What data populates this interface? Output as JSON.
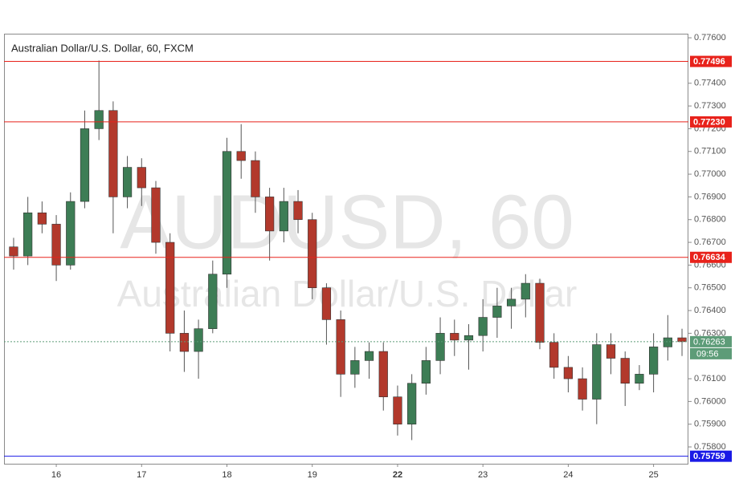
{
  "chart_data": {
    "type": "candlestick",
    "title": "Australian Dollar/U.S. Dollar, 60, FXCM",
    "watermark": "AUDUSD, 60",
    "watermark_subtitle": "Australian Dollar/U.S. Dollar",
    "up_color": "#3d7d55",
    "down_color": "#b2392c",
    "x": [
      -12,
      -8,
      -4,
      0,
      4,
      8,
      12,
      16,
      20,
      24,
      28,
      32,
      36,
      40,
      44,
      48,
      52,
      56,
      60,
      64,
      68,
      72,
      76,
      80,
      84,
      88,
      92,
      96,
      100,
      104,
      108,
      112,
      116,
      120,
      124,
      128,
      132,
      136,
      140,
      144,
      148,
      152,
      156,
      160,
      164,
      168,
      172,
      176
    ],
    "open": [
      0.7668,
      0.7664,
      0.7683,
      0.7678,
      0.766,
      0.7688,
      0.772,
      0.7728,
      0.769,
      0.7703,
      0.7694,
      0.767,
      0.763,
      0.7622,
      0.7632,
      0.7656,
      0.771,
      0.7706,
      0.769,
      0.7675,
      0.7688,
      0.768,
      0.765,
      0.7636,
      0.7612,
      0.7618,
      0.7622,
      0.7602,
      0.759,
      0.7608,
      0.7618,
      0.763,
      0.7627,
      0.7629,
      0.7637,
      0.7642,
      0.7645,
      0.7652,
      0.7626,
      0.7615,
      0.761,
      0.7601,
      0.7625,
      0.7619,
      0.7608,
      0.7612,
      0.7624,
      0.7628
    ],
    "high": [
      0.7672,
      0.769,
      0.7688,
      0.7682,
      0.7692,
      0.7728,
      0.775,
      0.7732,
      0.7708,
      0.7707,
      0.7697,
      0.7674,
      0.764,
      0.7636,
      0.7662,
      0.7716,
      0.7722,
      0.771,
      0.7694,
      0.7694,
      0.7693,
      0.7683,
      0.7652,
      0.764,
      0.7624,
      0.7626,
      0.7626,
      0.7607,
      0.7612,
      0.7624,
      0.7637,
      0.7636,
      0.7634,
      0.7645,
      0.765,
      0.765,
      0.7656,
      0.7654,
      0.763,
      0.762,
      0.7615,
      0.763,
      0.763,
      0.7622,
      0.7616,
      0.763,
      0.7638,
      0.7632
    ],
    "low": [
      0.7658,
      0.766,
      0.7674,
      0.7653,
      0.7658,
      0.7685,
      0.7715,
      0.7674,
      0.7685,
      0.7686,
      0.7665,
      0.7622,
      0.7613,
      0.761,
      0.763,
      0.765,
      0.7698,
      0.7683,
      0.7662,
      0.767,
      0.7674,
      0.7645,
      0.7625,
      0.7602,
      0.7606,
      0.761,
      0.7596,
      0.7585,
      0.7583,
      0.7603,
      0.7612,
      0.762,
      0.7614,
      0.7622,
      0.7628,
      0.7632,
      0.7637,
      0.7623,
      0.761,
      0.7604,
      0.7596,
      0.759,
      0.7612,
      0.7598,
      0.7605,
      0.7604,
      0.7618,
      0.762
    ],
    "close": [
      0.7664,
      0.7683,
      0.7678,
      0.766,
      0.7688,
      0.772,
      0.7728,
      0.769,
      0.7703,
      0.7694,
      0.767,
      0.763,
      0.7622,
      0.7632,
      0.7656,
      0.771,
      0.7706,
      0.769,
      0.7675,
      0.7688,
      0.768,
      0.765,
      0.7636,
      0.7612,
      0.7618,
      0.7622,
      0.7602,
      0.759,
      0.7608,
      0.7618,
      0.763,
      0.7627,
      0.7629,
      0.7637,
      0.7642,
      0.7645,
      0.7652,
      0.7626,
      0.7615,
      0.761,
      0.7601,
      0.7625,
      0.7619,
      0.7608,
      0.7612,
      0.7624,
      0.7628,
      0.76263
    ],
    "xlim": [
      -14.7,
      177.8
    ],
    "xticks": [
      {
        "value": 0,
        "label": "16"
      },
      {
        "value": 24,
        "label": "17"
      },
      {
        "value": 48,
        "label": "18"
      },
      {
        "value": 72,
        "label": "19"
      },
      {
        "value": 96,
        "label": "22"
      },
      {
        "value": 120,
        "label": "23"
      },
      {
        "value": 144,
        "label": "24"
      },
      {
        "value": 168,
        "label": "25"
      }
    ],
    "bold_xtick": 4,
    "ylim": [
      0.75726,
      0.77618
    ],
    "yticks": [
      {
        "value": 0.758,
        "label": "0.75800"
      },
      {
        "value": 0.759,
        "label": "0.75900"
      },
      {
        "value": 0.76,
        "label": "0.76000"
      },
      {
        "value": 0.761,
        "label": "0.76100"
      },
      {
        "value": 0.763,
        "label": "0.76300"
      },
      {
        "value": 0.764,
        "label": "0.76400"
      },
      {
        "value": 0.765,
        "label": "0.76500"
      },
      {
        "value": 0.766,
        "label": "0.76600"
      },
      {
        "value": 0.767,
        "label": "0.76700"
      },
      {
        "value": 0.768,
        "label": "0.76800"
      },
      {
        "value": 0.769,
        "label": "0.76900"
      },
      {
        "value": 0.77,
        "label": "0.77000"
      },
      {
        "value": 0.771,
        "label": "0.77100"
      },
      {
        "value": 0.772,
        "label": "0.77200"
      },
      {
        "value": 0.773,
        "label": "0.77300"
      },
      {
        "value": 0.774,
        "label": "0.77400"
      },
      {
        "value": 0.776,
        "label": "0.77600"
      }
    ],
    "levels": {
      "values": [
        0.77496,
        0.7723,
        0.76634,
        0.75759
      ],
      "value_labels": [
        "0.77496",
        "0.77230",
        "0.76634",
        "0.75759"
      ],
      "colors": [
        "#e8221b",
        "#e8221b",
        "#e8221b",
        "#1a1ae6"
      ]
    },
    "last_price": 0.76263,
    "last_price_color": "#5d9c78",
    "countdown": "09:56"
  }
}
